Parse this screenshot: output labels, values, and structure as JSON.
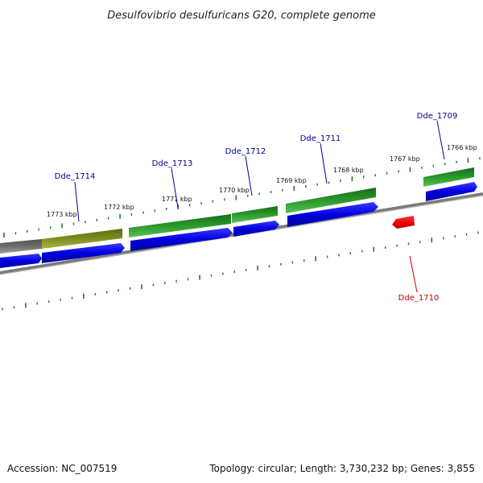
{
  "title": "Desulfovibrio desulfuricans G20, complete genome",
  "accession": "Accession: NC_007519",
  "summary": "Topology: circular; Length: 3,730,232 bp; Genes: 3,855",
  "colors": {
    "backbone": "#7a7a7a",
    "cds_forward_blue": "#0000e0",
    "gene_green": "#228b22",
    "gene_olive": "#7f8c1f",
    "gene_gray": "#6e6e6e",
    "highlight_red": "#ee0000",
    "tick_green": "#1f7a1f",
    "label_blue": "#00008b",
    "label_red": "#cc0000"
  },
  "ticks": [
    {
      "label": "1773 kbp"
    },
    {
      "label": "1772 kbp"
    },
    {
      "label": "1771 kbp"
    },
    {
      "label": "1770 kbp"
    },
    {
      "label": "1769 kbp"
    },
    {
      "label": "1768 kbp"
    },
    {
      "label": "1767 kbp"
    },
    {
      "label": "1766 kbp"
    }
  ],
  "genes": [
    {
      "name": "Dde_1714"
    },
    {
      "name": "Dde_1713"
    },
    {
      "name": "Dde_1712"
    },
    {
      "name": "Dde_1711"
    },
    {
      "name": "Dde_1709"
    },
    {
      "name": "Dde_1710"
    }
  ]
}
